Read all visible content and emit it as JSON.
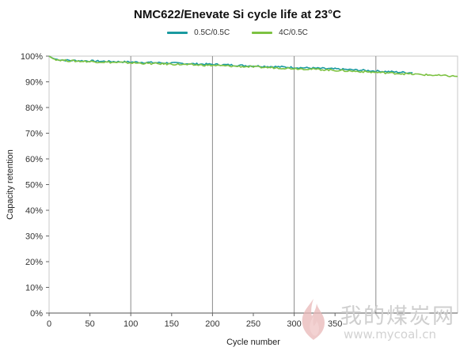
{
  "chart_data": {
    "type": "line",
    "title": "NMC622/Enevate Si cycle life at 23°C",
    "xlabel": "Cycle number",
    "ylabel": "Capacity retention",
    "xlim": [
      0,
      500
    ],
    "ylim": [
      0,
      100
    ],
    "x_ticks": [
      0,
      50,
      100,
      150,
      200,
      250,
      300,
      350
    ],
    "y_ticks": [
      "0%",
      "10%",
      "20%",
      "30%",
      "40%",
      "50%",
      "60%",
      "70%",
      "80%",
      "90%",
      "100%"
    ],
    "grid": "vertical lines every 100 cycles",
    "legend_position": "top-center",
    "series": [
      {
        "name": "0.5C/0.5C",
        "color": "#1a9aa0",
        "x": [
          0,
          5,
          10,
          20,
          30,
          50,
          75,
          100,
          125,
          150,
          175,
          200,
          225,
          250,
          275,
          300,
          325,
          350,
          375,
          400,
          425,
          445
        ],
        "y": [
          100,
          99.1,
          98.7,
          98.4,
          98.3,
          98.1,
          97.9,
          97.7,
          97.5,
          97.3,
          97.0,
          96.8,
          96.5,
          96.2,
          95.9,
          95.6,
          95.3,
          95.0,
          94.6,
          94.2,
          93.8,
          93.5
        ]
      },
      {
        "name": "4C/0.5C",
        "color": "#7dc242",
        "x": [
          0,
          5,
          10,
          20,
          30,
          50,
          75,
          100,
          125,
          150,
          175,
          200,
          225,
          250,
          275,
          300,
          325,
          350,
          375,
          400,
          425,
          450,
          475,
          500
        ],
        "y": [
          100,
          99.0,
          98.6,
          98.3,
          98.1,
          97.9,
          97.6,
          97.4,
          97.1,
          96.9,
          96.6,
          96.4,
          96.1,
          95.8,
          95.5,
          95.2,
          94.9,
          94.5,
          94.1,
          93.7,
          93.3,
          92.9,
          92.5,
          92.1
        ]
      }
    ]
  },
  "watermark": {
    "text": "我的煤炭网",
    "url": "www.mycoal.cn"
  }
}
